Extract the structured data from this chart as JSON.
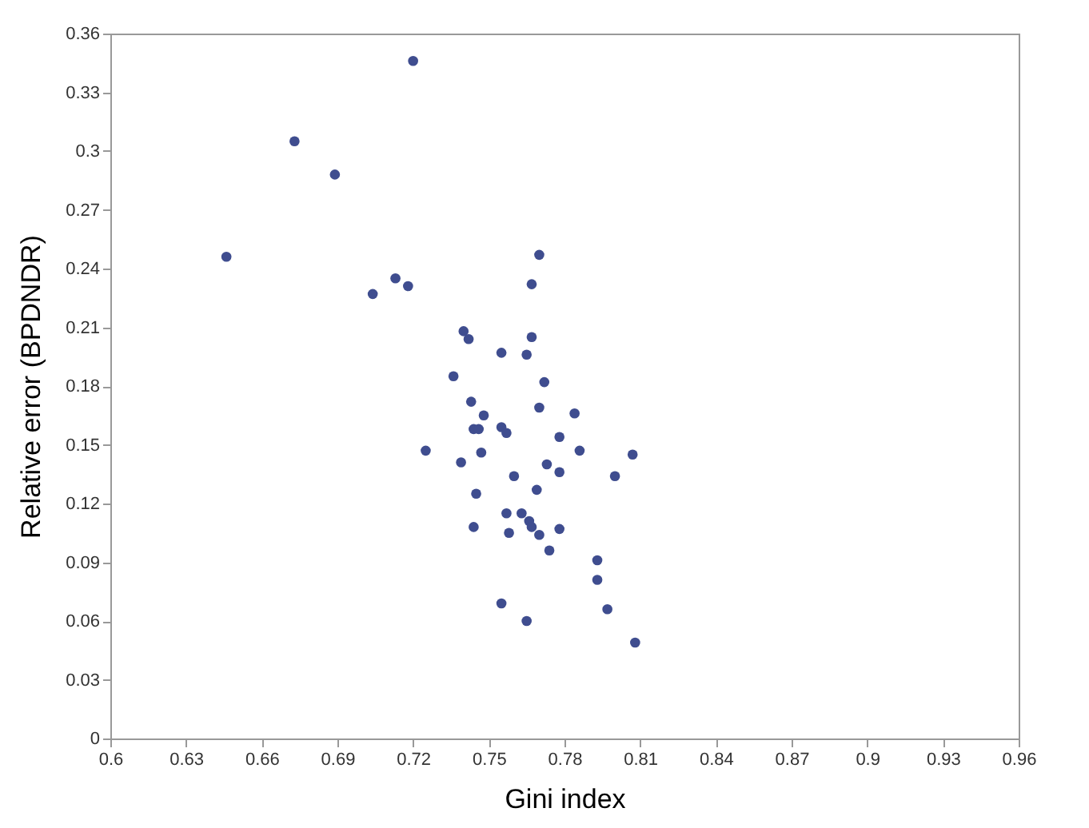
{
  "chart_data": {
    "type": "scatter",
    "xlabel": "Gini index",
    "ylabel": "Relative error (BPDNDR)",
    "x": [
      0.646,
      0.673,
      0.689,
      0.72,
      0.704,
      0.713,
      0.718,
      0.74,
      0.742,
      0.736,
      0.725,
      0.739,
      0.743,
      0.748,
      0.744,
      0.746,
      0.747,
      0.745,
      0.744,
      0.755,
      0.755,
      0.757,
      0.76,
      0.757,
      0.758,
      0.755,
      0.765,
      0.767,
      0.767,
      0.77,
      0.772,
      0.77,
      0.765,
      0.763,
      0.766,
      0.767,
      0.77,
      0.769,
      0.773,
      0.774,
      0.778,
      0.778,
      0.778,
      0.784,
      0.786,
      0.793,
      0.793,
      0.797,
      0.8,
      0.807,
      0.808
    ],
    "series": [
      {
        "color": "#3f4d8f",
        "values": [
          0.246,
          0.305,
          0.288,
          0.346,
          0.227,
          0.235,
          0.231,
          0.208,
          0.204,
          0.185,
          0.147,
          0.141,
          0.172,
          0.165,
          0.158,
          0.158,
          0.146,
          0.125,
          0.108,
          0.197,
          0.159,
          0.156,
          0.134,
          0.115,
          0.105,
          0.069,
          0.196,
          0.205,
          0.232,
          0.247,
          0.182,
          0.169,
          0.06,
          0.115,
          0.111,
          0.108,
          0.104,
          0.127,
          0.14,
          0.096,
          0.154,
          0.136,
          0.107,
          0.166,
          0.147,
          0.091,
          0.081,
          0.066,
          0.134,
          0.145,
          0.049
        ]
      }
    ],
    "xlim": [
      0.6,
      0.96
    ],
    "xticks": [
      0.6,
      0.63,
      0.66,
      0.69,
      0.72,
      0.75,
      0.78,
      0.81,
      0.84,
      0.87,
      0.9,
      0.93,
      0.96
    ],
    "ylim": [
      0,
      0.36
    ],
    "yticks": [
      0,
      0.03,
      0.06,
      0.09,
      0.12,
      0.15,
      0.18,
      0.21,
      0.24,
      0.27,
      0.3,
      0.33,
      0.36
    ],
    "marker": "circle",
    "grid": false,
    "legend": false
  }
}
